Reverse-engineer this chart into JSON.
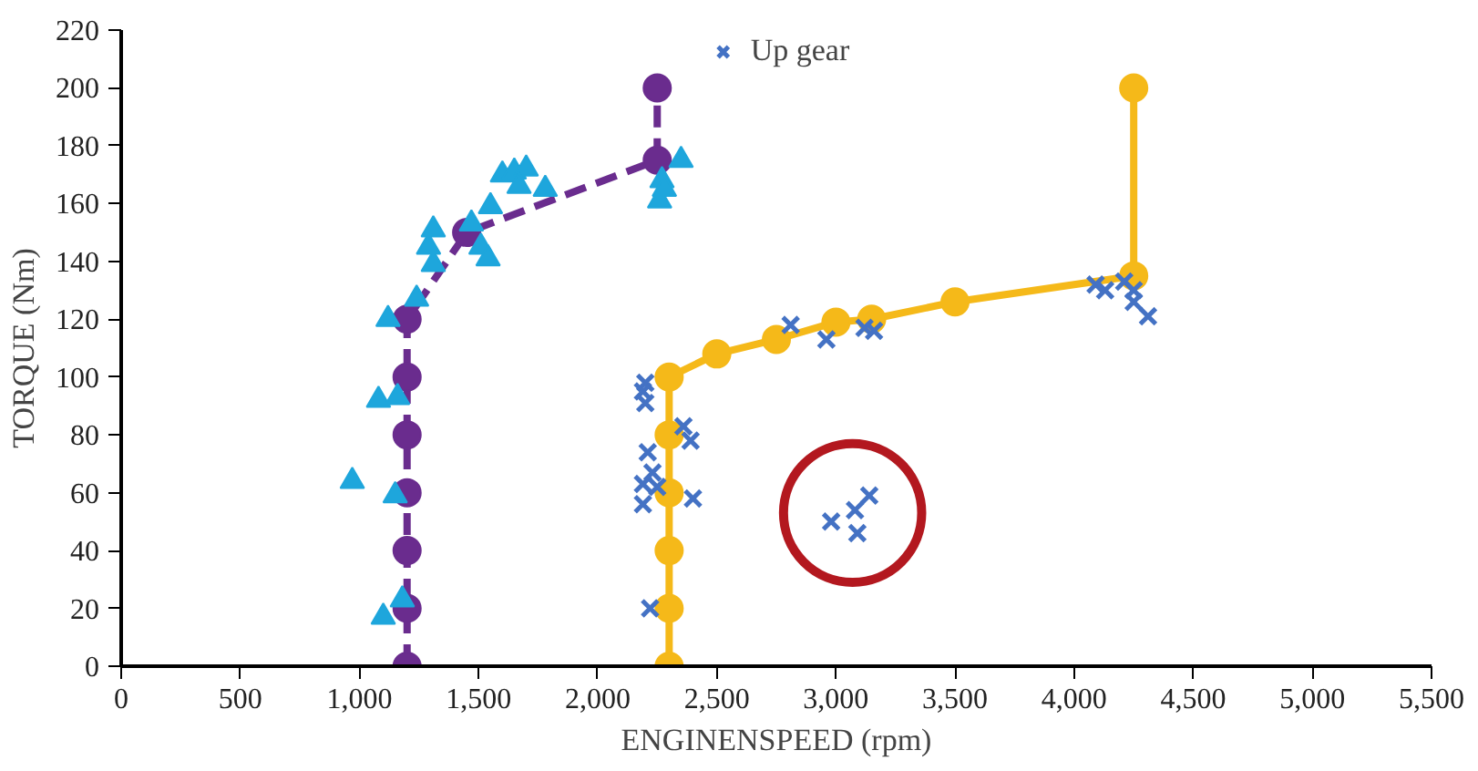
{
  "chart_data": {
    "type": "scatter",
    "xlabel": "ENGINENSPEED (rpm)",
    "ylabel": "TORQUE (Nm)",
    "xlim": [
      0,
      5500
    ],
    "ylim": [
      0,
      220
    ],
    "xticks": [
      0,
      500,
      {
        "value": 1000,
        "label": "1,000"
      },
      {
        "value": 1500,
        "label": "1,500"
      },
      {
        "value": 2000,
        "label": "2,000"
      },
      {
        "value": 2500,
        "label": "2,500"
      },
      {
        "value": 3000,
        "label": "3,000"
      },
      {
        "value": 3500,
        "label": "3,500"
      },
      {
        "value": 4000,
        "label": "4,000"
      },
      {
        "value": 4500,
        "label": "4,500"
      },
      {
        "value": 5000,
        "label": "5,000"
      },
      {
        "value": 5500,
        "label": "5,500"
      }
    ],
    "yticks": [
      0,
      20,
      40,
      60,
      80,
      100,
      120,
      140,
      160,
      180,
      200,
      220
    ],
    "grid": false,
    "legend": "top",
    "series": [
      {
        "type": "line",
        "marker": "circle",
        "line_style": "dashed",
        "color": "#6a2c8e",
        "x": [
          1200,
          1200,
          1200,
          1200,
          1200,
          1200,
          1200,
          1450,
          2250,
          2250
        ],
        "values": [
          0,
          20,
          40,
          60,
          80,
          100,
          120,
          150,
          175,
          200
        ]
      },
      {
        "marker": "triangle",
        "color": "#1ea6dc",
        "x": [
          970,
          1100,
          1180,
          1150,
          1080,
          1160,
          1120,
          1240,
          1310,
          1290,
          1310,
          1470,
          1510,
          1540,
          1550,
          1600,
          1650,
          1700,
          1670,
          1780,
          2350,
          2270,
          2260,
          2280
        ],
        "values": [
          64,
          17,
          23,
          59,
          92,
          93,
          120,
          127,
          139,
          145,
          151,
          153,
          145,
          141,
          159,
          170,
          171,
          172,
          166,
          165,
          175,
          168,
          161,
          165
        ]
      },
      {
        "type": "line",
        "marker": "circle",
        "line_style": "solid",
        "color": "#f5b919",
        "x": [
          2300,
          2300,
          2300,
          2300,
          2300,
          2300,
          2500,
          2750,
          3000,
          3150,
          3500,
          4250,
          4250
        ],
        "values": [
          0,
          20,
          40,
          60,
          80,
          100,
          108,
          113,
          119,
          120,
          126,
          135,
          200
        ]
      },
      {
        "marker": "cross",
        "name": "Up gear",
        "color": "#4472c4",
        "x": [
          2220,
          2200,
          2190,
          2200,
          2360,
          2390,
          2210,
          2230,
          2190,
          2190,
          2250,
          2400,
          2980,
          3090,
          3080,
          3140,
          2810,
          2960,
          3120,
          3160,
          4090,
          4130,
          4210,
          4250,
          4250,
          4310
        ],
        "values": [
          20,
          98,
          95,
          91,
          83,
          78,
          74,
          67,
          63,
          56,
          62,
          58,
          50,
          46,
          54,
          59,
          118,
          113,
          117,
          116,
          132,
          130,
          133,
          130,
          126,
          121
        ]
      }
    ]
  }
}
